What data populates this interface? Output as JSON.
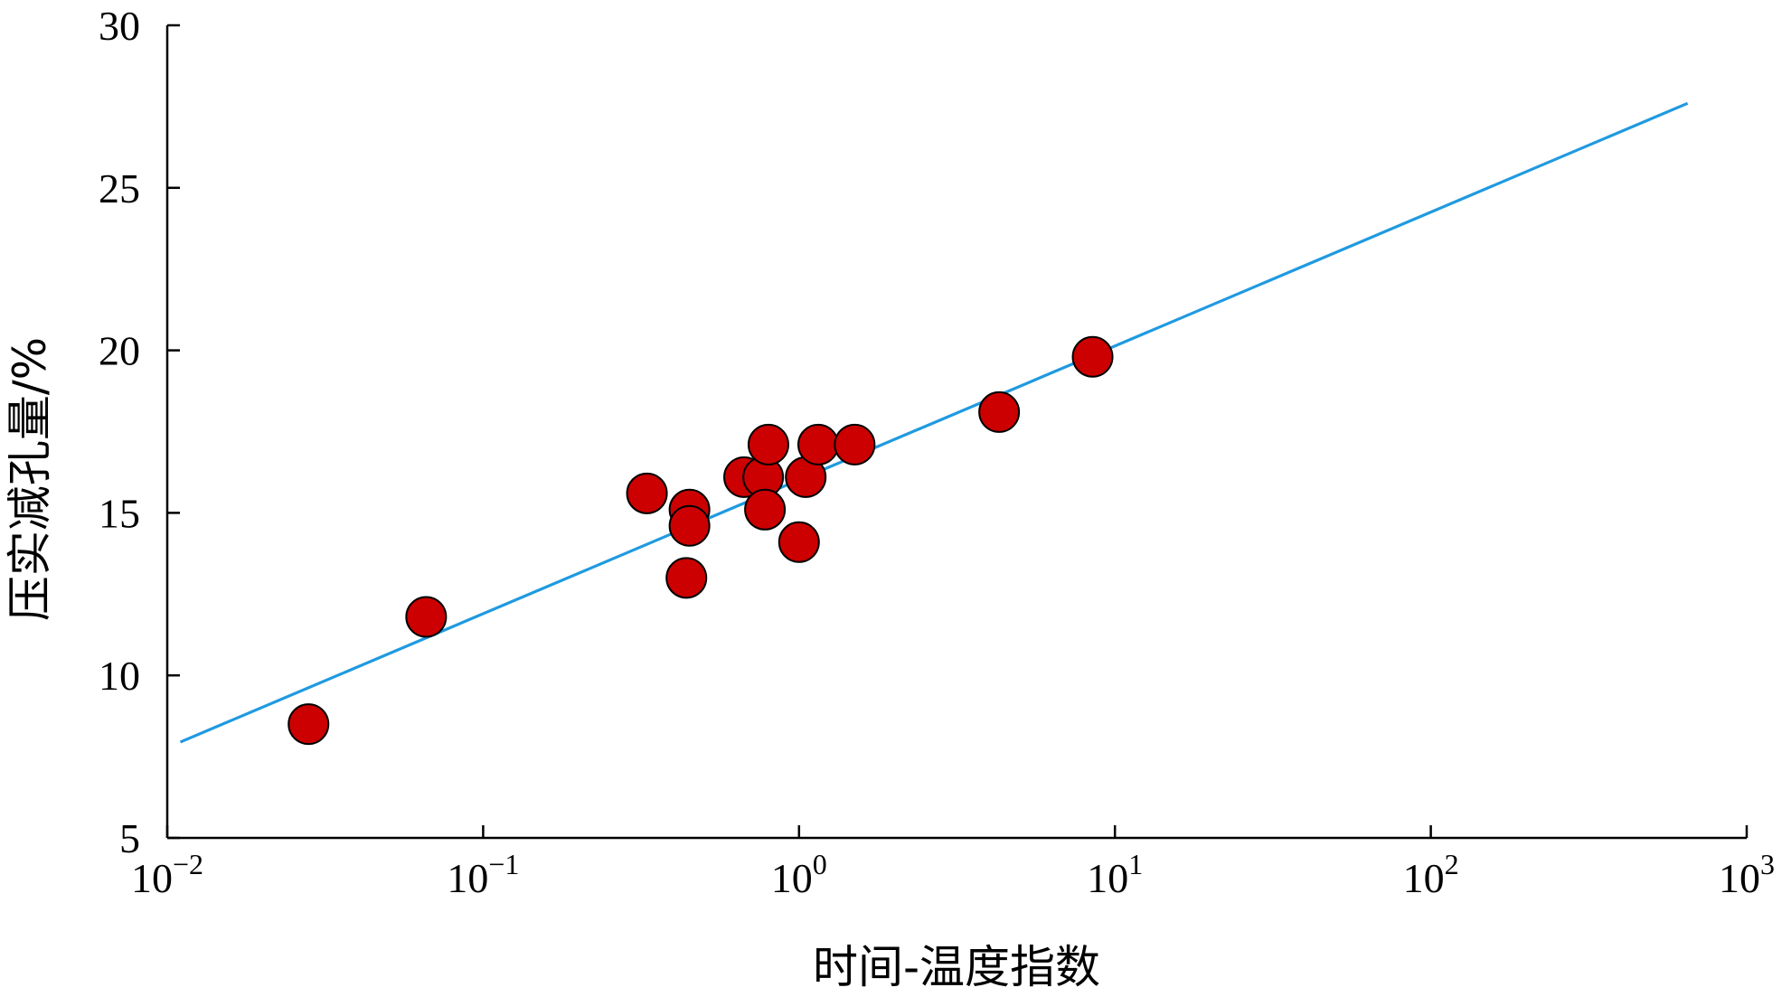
{
  "chart_data": {
    "type": "scatter",
    "title": "",
    "xlabel": "时间-温度指数",
    "ylabel": "压实减孔量/%",
    "x_scale": "log",
    "xlim": [
      0.01,
      1000
    ],
    "ylim": [
      5,
      30
    ],
    "x_ticks": [
      {
        "value": 0.01,
        "base": "10",
        "exp": "−2"
      },
      {
        "value": 0.1,
        "base": "10",
        "exp": "−1"
      },
      {
        "value": 1,
        "base": "10",
        "exp": "0"
      },
      {
        "value": 10,
        "base": "10",
        "exp": "1"
      },
      {
        "value": 100,
        "base": "10",
        "exp": "2"
      },
      {
        "value": 1000,
        "base": "10",
        "exp": "3"
      }
    ],
    "y_ticks": [
      {
        "value": 5,
        "label": "5"
      },
      {
        "value": 10,
        "label": "10"
      },
      {
        "value": 15,
        "label": "15"
      },
      {
        "value": 20,
        "label": "20"
      },
      {
        "value": 25,
        "label": "25"
      },
      {
        "value": 30,
        "label": "30"
      }
    ],
    "grid": false,
    "points": [
      {
        "x": 0.028,
        "y": 8.5
      },
      {
        "x": 0.066,
        "y": 11.8
      },
      {
        "x": 0.33,
        "y": 15.6
      },
      {
        "x": 0.45,
        "y": 15.1
      },
      {
        "x": 0.45,
        "y": 14.6
      },
      {
        "x": 0.44,
        "y": 13.0
      },
      {
        "x": 0.67,
        "y": 16.1
      },
      {
        "x": 0.77,
        "y": 16.1
      },
      {
        "x": 0.8,
        "y": 17.1
      },
      {
        "x": 0.78,
        "y": 15.1
      },
      {
        "x": 1.0,
        "y": 14.1
      },
      {
        "x": 1.05,
        "y": 16.1
      },
      {
        "x": 1.15,
        "y": 17.1
      },
      {
        "x": 1.5,
        "y": 17.1
      },
      {
        "x": 4.3,
        "y": 18.1
      },
      {
        "x": 8.5,
        "y": 19.8
      }
    ],
    "fit_line": {
      "x": [
        0.011,
        650
      ],
      "y": [
        7.95,
        27.6
      ]
    },
    "colors": {
      "marker_fill": "#cc0000",
      "marker_stroke": "#000000",
      "line": "#1f9ae0",
      "axis": "#000000"
    }
  }
}
